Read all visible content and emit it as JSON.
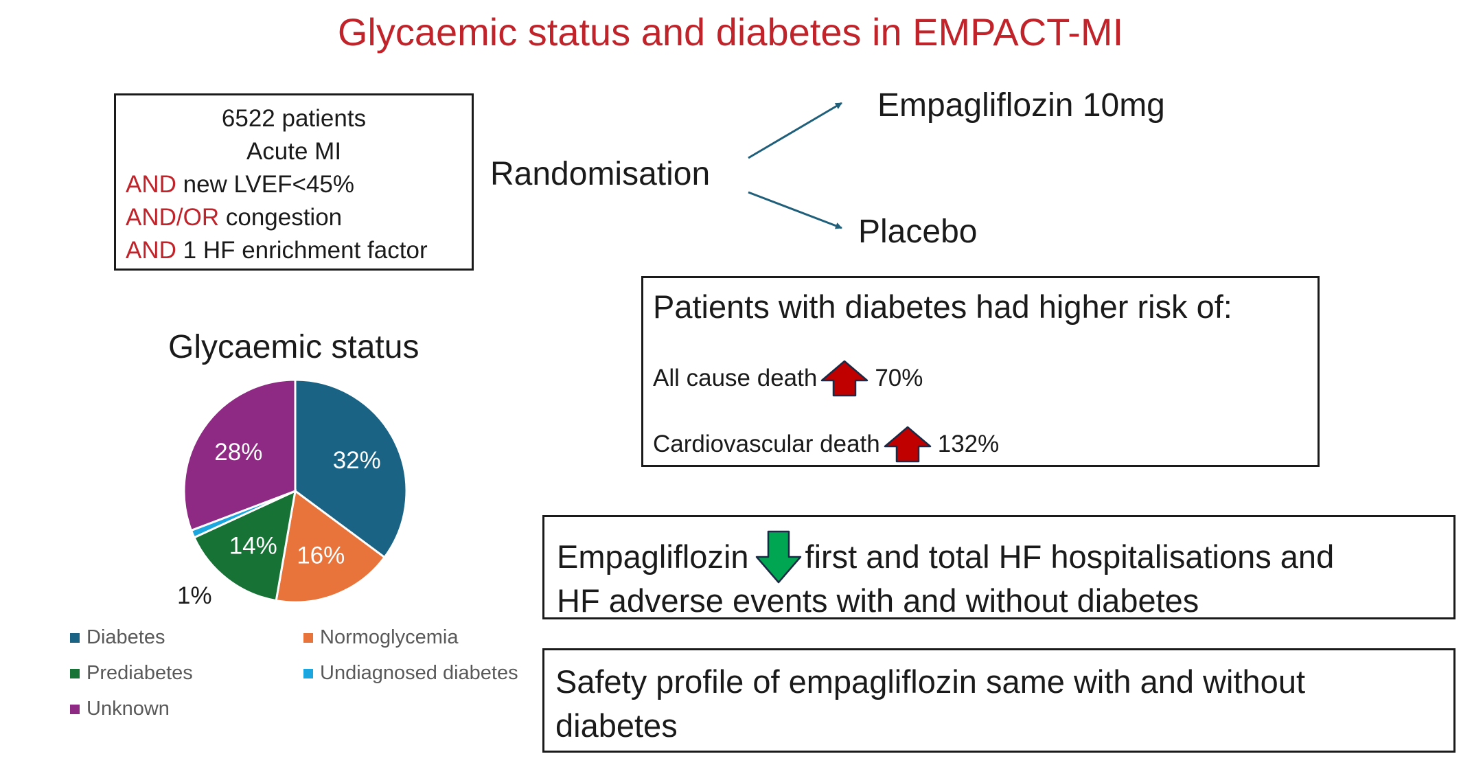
{
  "title": "Glycaemic status and diabetes in EMPACT-MI",
  "criteria": {
    "line1": "6522 patients",
    "line2": "Acute MI",
    "line3_prefix": "AND",
    "line3_text": " new LVEF<45%",
    "line4_prefix": "AND/OR",
    "line4_text": " congestion",
    "line5_prefix": "AND",
    "line5_text": " 1 HF enrichment factor"
  },
  "randomisation": {
    "label": "Randomisation",
    "arm1": "Empagliflozin 10mg",
    "arm2": "Placebo"
  },
  "risk": {
    "heading": "Patients with diabetes had higher risk of:",
    "rows": [
      {
        "label": "All cause death",
        "value": "70%",
        "icon": "arrow-up-icon"
      },
      {
        "label": "Cardiovascular death",
        "value": "132%",
        "icon": "arrow-up-icon"
      }
    ]
  },
  "effect": {
    "prefix": "Empagliflozin",
    "icon": "arrow-down-icon",
    "line1_rest": " first and total HF hospitalisations and",
    "line2": "HF adverse events with and without diabetes"
  },
  "safety": {
    "line1": "Safety profile of empagliflozin same with and without",
    "line2": "diabetes"
  },
  "colors": {
    "title_red": "#c0232a",
    "arrow_red": "#c00000",
    "arrow_green": "#00a651",
    "connector": "#1f5f7a"
  },
  "chart_data": {
    "type": "pie",
    "title": "Glycaemic status",
    "series": [
      {
        "name": "Diabetes",
        "value": 32,
        "label": "32%",
        "color": "#1a6385"
      },
      {
        "name": "Normoglycemia",
        "value": 16,
        "label": "16%",
        "color": "#e8743b"
      },
      {
        "name": "Prediabetes",
        "value": 14,
        "label": "14%",
        "color": "#167235"
      },
      {
        "name": "Undiagnosed diabetes",
        "value": 1,
        "label": "1%",
        "color": "#1ba6e0"
      },
      {
        "name": "Unknown",
        "value": 28,
        "label": "28%",
        "color": "#8e2a83"
      }
    ],
    "legend": [
      "Diabetes",
      "Normoglycemia",
      "Prediabetes",
      "Undiagnosed diabetes",
      "Unknown"
    ],
    "legend_position": "bottom"
  }
}
